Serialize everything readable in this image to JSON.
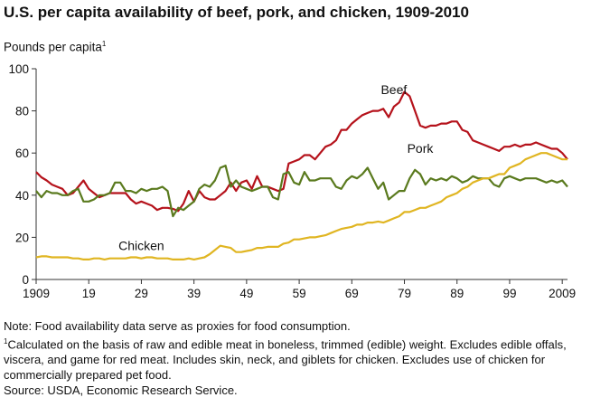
{
  "title": "U.S. per capita availability of beef, pork, and chicken, 1909-2010",
  "ylabel": "Pounds per capita",
  "ylabel_footnote": "1",
  "notes": {
    "note": "Note: Food availability data serve as proxies for food consumption.",
    "footnote_marker": "1",
    "footnote": "Calculated on the basis of raw and edible meat in boneless, trimmed (edible) weight. Excludes edible offals, viscera, and game for red meat. Includes skin, neck, and giblets for chicken. Excludes use of chicken for commercially prepared pet food.",
    "source": "Source:  USDA, Economic Research Service."
  },
  "colors": {
    "beef": "#b5121b",
    "pork": "#5a7a1e",
    "chicken": "#e0b521",
    "axis": "#333333"
  },
  "chart_data": {
    "type": "line",
    "xlim": [
      1909,
      2010
    ],
    "ylim": [
      0,
      100
    ],
    "x_ticks": [
      1909,
      1919,
      1929,
      1939,
      1949,
      1959,
      1969,
      1979,
      1989,
      1999,
      2009
    ],
    "x_tick_labels": [
      "1909",
      "19",
      "29",
      "39",
      "49",
      "59",
      "69",
      "79",
      "89",
      "99",
      "2009"
    ],
    "y_ticks": [
      0,
      20,
      40,
      60,
      80,
      100
    ],
    "grid": false,
    "series": [
      {
        "name": "Beef",
        "color_key": "beef",
        "label_year": 1977,
        "label_value": 88,
        "points": [
          [
            1909,
            51
          ],
          [
            1910,
            48.5
          ],
          [
            1911,
            47
          ],
          [
            1912,
            45
          ],
          [
            1913,
            44
          ],
          [
            1914,
            43
          ],
          [
            1915,
            40
          ],
          [
            1916,
            41
          ],
          [
            1917,
            44
          ],
          [
            1918,
            47
          ],
          [
            1919,
            43
          ],
          [
            1920,
            41
          ],
          [
            1921,
            39
          ],
          [
            1922,
            40
          ],
          [
            1923,
            41
          ],
          [
            1924,
            41
          ],
          [
            1925,
            41
          ],
          [
            1926,
            41
          ],
          [
            1927,
            38
          ],
          [
            1928,
            36
          ],
          [
            1929,
            37
          ],
          [
            1930,
            36
          ],
          [
            1931,
            35
          ],
          [
            1932,
            33
          ],
          [
            1933,
            34
          ],
          [
            1934,
            34
          ],
          [
            1935,
            33.5
          ],
          [
            1936,
            32.5
          ],
          [
            1937,
            36
          ],
          [
            1938,
            42
          ],
          [
            1939,
            37
          ],
          [
            1940,
            42
          ],
          [
            1941,
            39
          ],
          [
            1942,
            38
          ],
          [
            1943,
            38
          ],
          [
            1944,
            40
          ],
          [
            1945,
            42
          ],
          [
            1946,
            46
          ],
          [
            1947,
            42
          ],
          [
            1948,
            46
          ],
          [
            1949,
            47
          ],
          [
            1950,
            43
          ],
          [
            1951,
            49
          ],
          [
            1952,
            44
          ],
          [
            1953,
            44
          ],
          [
            1954,
            43
          ],
          [
            1955,
            42
          ],
          [
            1956,
            43
          ],
          [
            1957,
            55
          ],
          [
            1958,
            56
          ],
          [
            1959,
            57
          ],
          [
            1960,
            59
          ],
          [
            1961,
            59
          ],
          [
            1962,
            57
          ],
          [
            1963,
            60
          ],
          [
            1964,
            63
          ],
          [
            1965,
            64
          ],
          [
            1966,
            66
          ],
          [
            1967,
            71
          ],
          [
            1968,
            71
          ],
          [
            1969,
            74
          ],
          [
            1970,
            76
          ],
          [
            1971,
            78
          ],
          [
            1972,
            79
          ],
          [
            1973,
            80
          ],
          [
            1974,
            80
          ],
          [
            1975,
            81
          ],
          [
            1976,
            77
          ],
          [
            1977,
            82
          ],
          [
            1978,
            84
          ],
          [
            1979,
            89
          ],
          [
            1980,
            87
          ],
          [
            1981,
            80
          ],
          [
            1982,
            73
          ],
          [
            1983,
            72
          ],
          [
            1984,
            73
          ],
          [
            1985,
            73
          ],
          [
            1986,
            74
          ],
          [
            1987,
            74
          ],
          [
            1988,
            75
          ],
          [
            1989,
            75
          ],
          [
            1990,
            71
          ],
          [
            1991,
            70
          ],
          [
            1992,
            66
          ],
          [
            1993,
            65
          ],
          [
            1994,
            64
          ],
          [
            1995,
            63
          ],
          [
            1996,
            62
          ],
          [
            1997,
            61
          ],
          [
            1998,
            63
          ],
          [
            1999,
            63
          ],
          [
            2000,
            64
          ],
          [
            2001,
            63
          ],
          [
            2002,
            64
          ],
          [
            2003,
            64
          ],
          [
            2004,
            65
          ],
          [
            2005,
            64
          ],
          [
            2006,
            63
          ],
          [
            2007,
            62
          ],
          [
            2008,
            62
          ],
          [
            2009,
            60
          ],
          [
            2010,
            57
          ]
        ]
      },
      {
        "name": "Pork",
        "color_key": "pork",
        "label_year": 1982,
        "label_value": 60,
        "points": [
          [
            1909,
            42
          ],
          [
            1910,
            39
          ],
          [
            1911,
            42
          ],
          [
            1912,
            41
          ],
          [
            1913,
            41
          ],
          [
            1914,
            40
          ],
          [
            1915,
            40
          ],
          [
            1916,
            42
          ],
          [
            1917,
            43
          ],
          [
            1918,
            37
          ],
          [
            1919,
            37
          ],
          [
            1920,
            38
          ],
          [
            1921,
            40
          ],
          [
            1922,
            40
          ],
          [
            1923,
            41
          ],
          [
            1924,
            46
          ],
          [
            1925,
            46
          ],
          [
            1926,
            42
          ],
          [
            1927,
            42
          ],
          [
            1928,
            41
          ],
          [
            1929,
            43
          ],
          [
            1930,
            42
          ],
          [
            1931,
            43
          ],
          [
            1932,
            43
          ],
          [
            1933,
            44
          ],
          [
            1934,
            42
          ],
          [
            1935,
            30
          ],
          [
            1936,
            34
          ],
          [
            1937,
            33
          ],
          [
            1938,
            35
          ],
          [
            1939,
            37
          ],
          [
            1940,
            43
          ],
          [
            1941,
            45
          ],
          [
            1942,
            44
          ],
          [
            1943,
            47
          ],
          [
            1944,
            53
          ],
          [
            1945,
            54
          ],
          [
            1946,
            44
          ],
          [
            1947,
            47
          ],
          [
            1948,
            44
          ],
          [
            1949,
            43
          ],
          [
            1950,
            42
          ],
          [
            1951,
            43
          ],
          [
            1952,
            44
          ],
          [
            1953,
            44
          ],
          [
            1954,
            39
          ],
          [
            1955,
            38
          ],
          [
            1956,
            50
          ],
          [
            1957,
            51
          ],
          [
            1958,
            46
          ],
          [
            1959,
            45
          ],
          [
            1960,
            51
          ],
          [
            1961,
            47
          ],
          [
            1962,
            47
          ],
          [
            1963,
            48
          ],
          [
            1964,
            48
          ],
          [
            1965,
            48
          ],
          [
            1966,
            44
          ],
          [
            1967,
            43
          ],
          [
            1968,
            47
          ],
          [
            1969,
            49
          ],
          [
            1970,
            48
          ],
          [
            1971,
            50
          ],
          [
            1972,
            53
          ],
          [
            1973,
            48
          ],
          [
            1974,
            43
          ],
          [
            1975,
            46
          ],
          [
            1976,
            38
          ],
          [
            1977,
            40
          ],
          [
            1978,
            42
          ],
          [
            1979,
            42
          ],
          [
            1980,
            48
          ],
          [
            1981,
            52
          ],
          [
            1982,
            50
          ],
          [
            1983,
            45
          ],
          [
            1984,
            48
          ],
          [
            1985,
            47
          ],
          [
            1986,
            48
          ],
          [
            1987,
            47
          ],
          [
            1988,
            49
          ],
          [
            1989,
            48
          ],
          [
            1990,
            46
          ],
          [
            1991,
            47
          ],
          [
            1992,
            49
          ],
          [
            1993,
            48
          ],
          [
            1994,
            48
          ],
          [
            1995,
            48
          ],
          [
            1996,
            45
          ],
          [
            1997,
            44
          ],
          [
            1998,
            48
          ],
          [
            1999,
            49
          ],
          [
            2000,
            48
          ],
          [
            2001,
            47
          ],
          [
            2002,
            48
          ],
          [
            2003,
            48
          ],
          [
            2004,
            48
          ],
          [
            2005,
            47
          ],
          [
            2006,
            46
          ],
          [
            2007,
            47
          ],
          [
            2008,
            46
          ],
          [
            2009,
            47
          ],
          [
            2010,
            44
          ]
        ]
      },
      {
        "name": "Chicken",
        "color_key": "chicken",
        "label_year": 1929,
        "label_value": 14,
        "points": [
          [
            1909,
            10.5
          ],
          [
            1910,
            11
          ],
          [
            1911,
            11
          ],
          [
            1912,
            10.5
          ],
          [
            1913,
            10.5
          ],
          [
            1914,
            10.5
          ],
          [
            1915,
            10.5
          ],
          [
            1916,
            10
          ],
          [
            1917,
            10
          ],
          [
            1918,
            9.5
          ],
          [
            1919,
            9.5
          ],
          [
            1920,
            10
          ],
          [
            1921,
            10
          ],
          [
            1922,
            9.5
          ],
          [
            1923,
            10
          ],
          [
            1924,
            10
          ],
          [
            1925,
            10
          ],
          [
            1926,
            10
          ],
          [
            1927,
            10.5
          ],
          [
            1928,
            10.5
          ],
          [
            1929,
            10
          ],
          [
            1930,
            10.5
          ],
          [
            1931,
            10.5
          ],
          [
            1932,
            10
          ],
          [
            1933,
            10
          ],
          [
            1934,
            10
          ],
          [
            1935,
            9.5
          ],
          [
            1936,
            9.5
          ],
          [
            1937,
            9.5
          ],
          [
            1938,
            10
          ],
          [
            1939,
            9.5
          ],
          [
            1940,
            10
          ],
          [
            1941,
            10.5
          ],
          [
            1942,
            12
          ],
          [
            1943,
            14
          ],
          [
            1944,
            16
          ],
          [
            1945,
            15.5
          ],
          [
            1946,
            15
          ],
          [
            1947,
            13
          ],
          [
            1948,
            13
          ],
          [
            1949,
            13.5
          ],
          [
            1950,
            14
          ],
          [
            1951,
            15
          ],
          [
            1952,
            15
          ],
          [
            1953,
            15.5
          ],
          [
            1954,
            15.5
          ],
          [
            1955,
            15.5
          ],
          [
            1956,
            17
          ],
          [
            1957,
            17.5
          ],
          [
            1958,
            19
          ],
          [
            1959,
            19
          ],
          [
            1960,
            19.5
          ],
          [
            1961,
            20
          ],
          [
            1962,
            20
          ],
          [
            1963,
            20.5
          ],
          [
            1964,
            21
          ],
          [
            1965,
            22
          ],
          [
            1966,
            23
          ],
          [
            1967,
            24
          ],
          [
            1968,
            24.5
          ],
          [
            1969,
            25
          ],
          [
            1970,
            26
          ],
          [
            1971,
            26
          ],
          [
            1972,
            27
          ],
          [
            1973,
            27
          ],
          [
            1974,
            27.5
          ],
          [
            1975,
            27
          ],
          [
            1976,
            28
          ],
          [
            1977,
            29
          ],
          [
            1978,
            30
          ],
          [
            1979,
            32
          ],
          [
            1980,
            32
          ],
          [
            1981,
            33
          ],
          [
            1982,
            34
          ],
          [
            1983,
            34
          ],
          [
            1984,
            35
          ],
          [
            1985,
            36
          ],
          [
            1986,
            37
          ],
          [
            1987,
            39
          ],
          [
            1988,
            40
          ],
          [
            1989,
            41
          ],
          [
            1990,
            43
          ],
          [
            1991,
            44
          ],
          [
            1992,
            46
          ],
          [
            1993,
            47
          ],
          [
            1994,
            48
          ],
          [
            1995,
            48
          ],
          [
            1996,
            49
          ],
          [
            1997,
            50
          ],
          [
            1998,
            50
          ],
          [
            1999,
            53
          ],
          [
            2000,
            54
          ],
          [
            2001,
            55
          ],
          [
            2002,
            57
          ],
          [
            2003,
            58
          ],
          [
            2004,
            59
          ],
          [
            2005,
            60
          ],
          [
            2006,
            60
          ],
          [
            2007,
            59
          ],
          [
            2008,
            58
          ],
          [
            2009,
            57
          ],
          [
            2010,
            57
          ]
        ]
      }
    ]
  }
}
